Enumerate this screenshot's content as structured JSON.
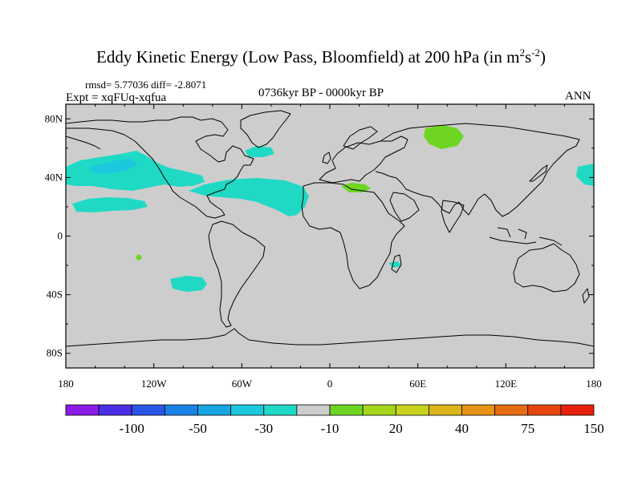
{
  "title": {
    "main": "Eddy Kinetic Energy (Low Pass, Bloomfield) at 200 hPa (in m",
    "sup1": "2",
    "mid": "s",
    "sup2": "-2",
    "end": ")"
  },
  "stats": "rmsd= 5.77036 diff= -2.8071",
  "expt": "Expt = xqFUq-xqfua",
  "period": "0736kyr BP - 0000kyr BP",
  "season": "ANN",
  "axes": {
    "lat_ticks": [
      "80N",
      "40N",
      "0",
      "40S",
      "80S"
    ],
    "lat_values": [
      80,
      40,
      0,
      -40,
      -80
    ],
    "lon_ticks": [
      "180",
      "120W",
      "60W",
      "0",
      "60E",
      "120E",
      "180"
    ],
    "lon_values": [
      -180,
      -120,
      -60,
      0,
      60,
      120,
      180
    ]
  },
  "colorbar": {
    "colors": [
      "#8b1ce6",
      "#4a2ee6",
      "#2a55e6",
      "#1a82e6",
      "#17a6e3",
      "#1bc8dd",
      "#20d9c5",
      "#cdcdcd",
      "#6ed623",
      "#a6d61c",
      "#c9d31d",
      "#dbb519",
      "#e69316",
      "#e66c12",
      "#e6450f",
      "#e6200d"
    ],
    "labels": [
      "-100",
      "-50",
      "-30",
      "-10",
      "20",
      "40",
      "75",
      "150"
    ]
  },
  "colors": {
    "land_ocean_fill": "#cdcdcd",
    "negative_anomaly": "#20d9c5",
    "strong_negative_anomaly": "#1bc8dd",
    "positive_anomaly": "#6ed623",
    "coastline": "#000000"
  }
}
